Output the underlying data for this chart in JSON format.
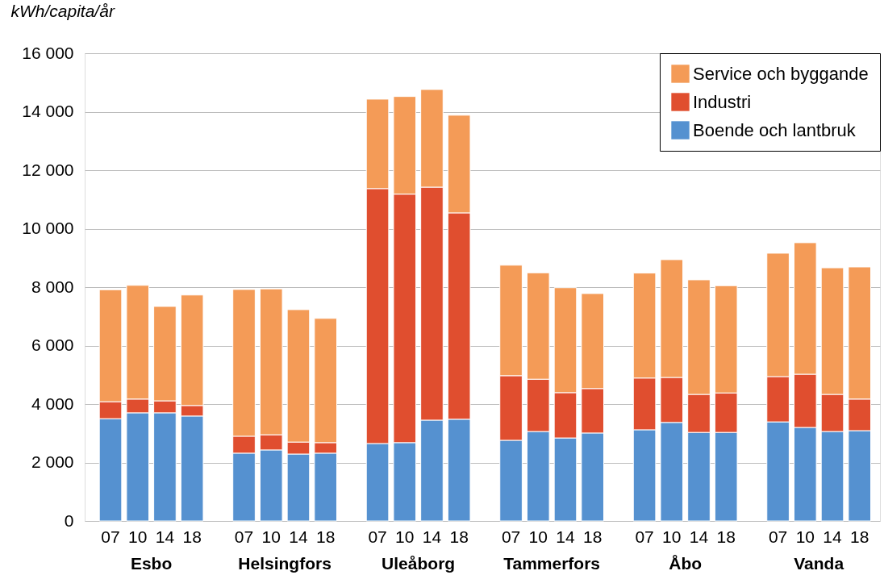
{
  "chart_data": {
    "type": "bar",
    "stacked": true,
    "ylabel": "kWh/capita/år",
    "categories": [
      "07",
      "10",
      "14",
      "18",
      "07",
      "10",
      "14",
      "18",
      "07",
      "10",
      "14",
      "18",
      "07",
      "10",
      "14",
      "18",
      "07",
      "10",
      "14",
      "18",
      "07",
      "10",
      "14",
      "18"
    ],
    "annotations": [
      "Esbo",
      "Helsingfors",
      "Uleåborg",
      "Tammerfors",
      "Åbo",
      "Vanda"
    ],
    "series": [
      {
        "name": "Boende och lantbruk",
        "color": "#5591d0",
        "values": [
          3500,
          3700,
          3700,
          3590,
          2320,
          2430,
          2290,
          2320,
          2650,
          2680,
          3450,
          3480,
          2760,
          3060,
          2840,
          3010,
          3120,
          3370,
          3030,
          3030,
          3390,
          3200,
          3060,
          3090
        ]
      },
      {
        "name": "Industri",
        "color": "#e04e2f",
        "values": [
          580,
          470,
          410,
          360,
          580,
          520,
          410,
          360,
          8720,
          8500,
          7970,
          7060,
          2210,
          1790,
          1550,
          1520,
          1770,
          1540,
          1300,
          1350,
          1550,
          1820,
          1270,
          1080
        ]
      },
      {
        "name": "Service och byggande",
        "color": "#f49b57",
        "values": [
          3830,
          3890,
          3230,
          3780,
          5020,
          4990,
          4530,
          4250,
          3060,
          3340,
          3340,
          3340,
          3780,
          3640,
          3590,
          3250,
          3590,
          4030,
          3920,
          3670,
          4220,
          4500,
          4330,
          4520
        ]
      }
    ],
    "ylim": [
      0,
      16000
    ],
    "yticks": [
      0,
      {
        "value": 2000,
        "label": "2 000"
      },
      {
        "value": 4000,
        "label": "4 000"
      },
      {
        "value": 6000,
        "label": "6 000"
      },
      {
        "value": 8000,
        "label": "8 000"
      },
      {
        "value": 10000,
        "label": "10 000"
      },
      {
        "value": 12000,
        "label": "12 000"
      },
      {
        "value": 14000,
        "label": "14 000"
      },
      {
        "value": 16000,
        "label": "16 000"
      }
    ],
    "grid": "y",
    "legend": "top right"
  }
}
